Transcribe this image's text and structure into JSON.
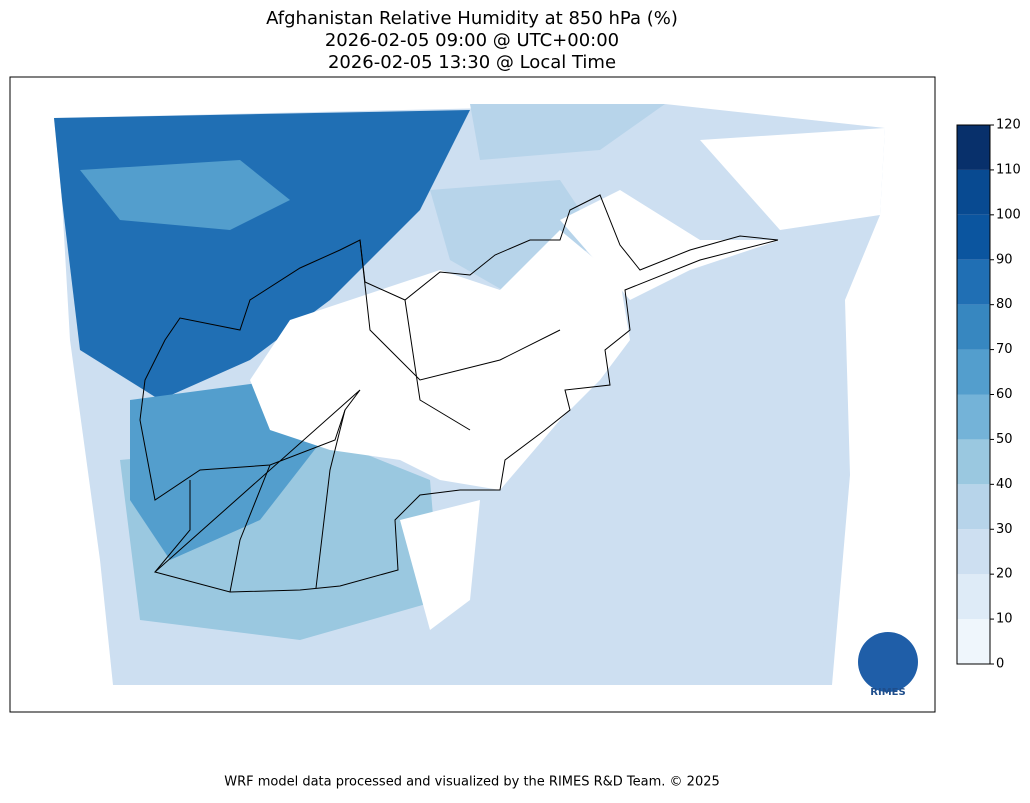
{
  "title": [
    "Afghanistan Relative Humidity at 850 hPa (%)",
    "2026-02-05 09:00 @ UTC+00:00",
    "2026-02-05 13:30 @ Local Time"
  ],
  "colorbar": {
    "lim": [
      0,
      120
    ],
    "ticks": [
      0,
      10,
      20,
      30,
      40,
      50,
      60,
      70,
      80,
      90,
      100,
      110,
      120
    ],
    "colors": [
      "#eff6fc",
      "#deebf7",
      "#cddff1",
      "#b7d4ea",
      "#9ac8e0",
      "#74b3d8",
      "#539ecd",
      "#3787c0",
      "#206fb4",
      "#0b559f",
      "#084a91",
      "#08306b"
    ]
  },
  "logo": "RIMES",
  "footer": "WRF model data processed and visualized by the RIMES R&D Team. © 2025"
}
